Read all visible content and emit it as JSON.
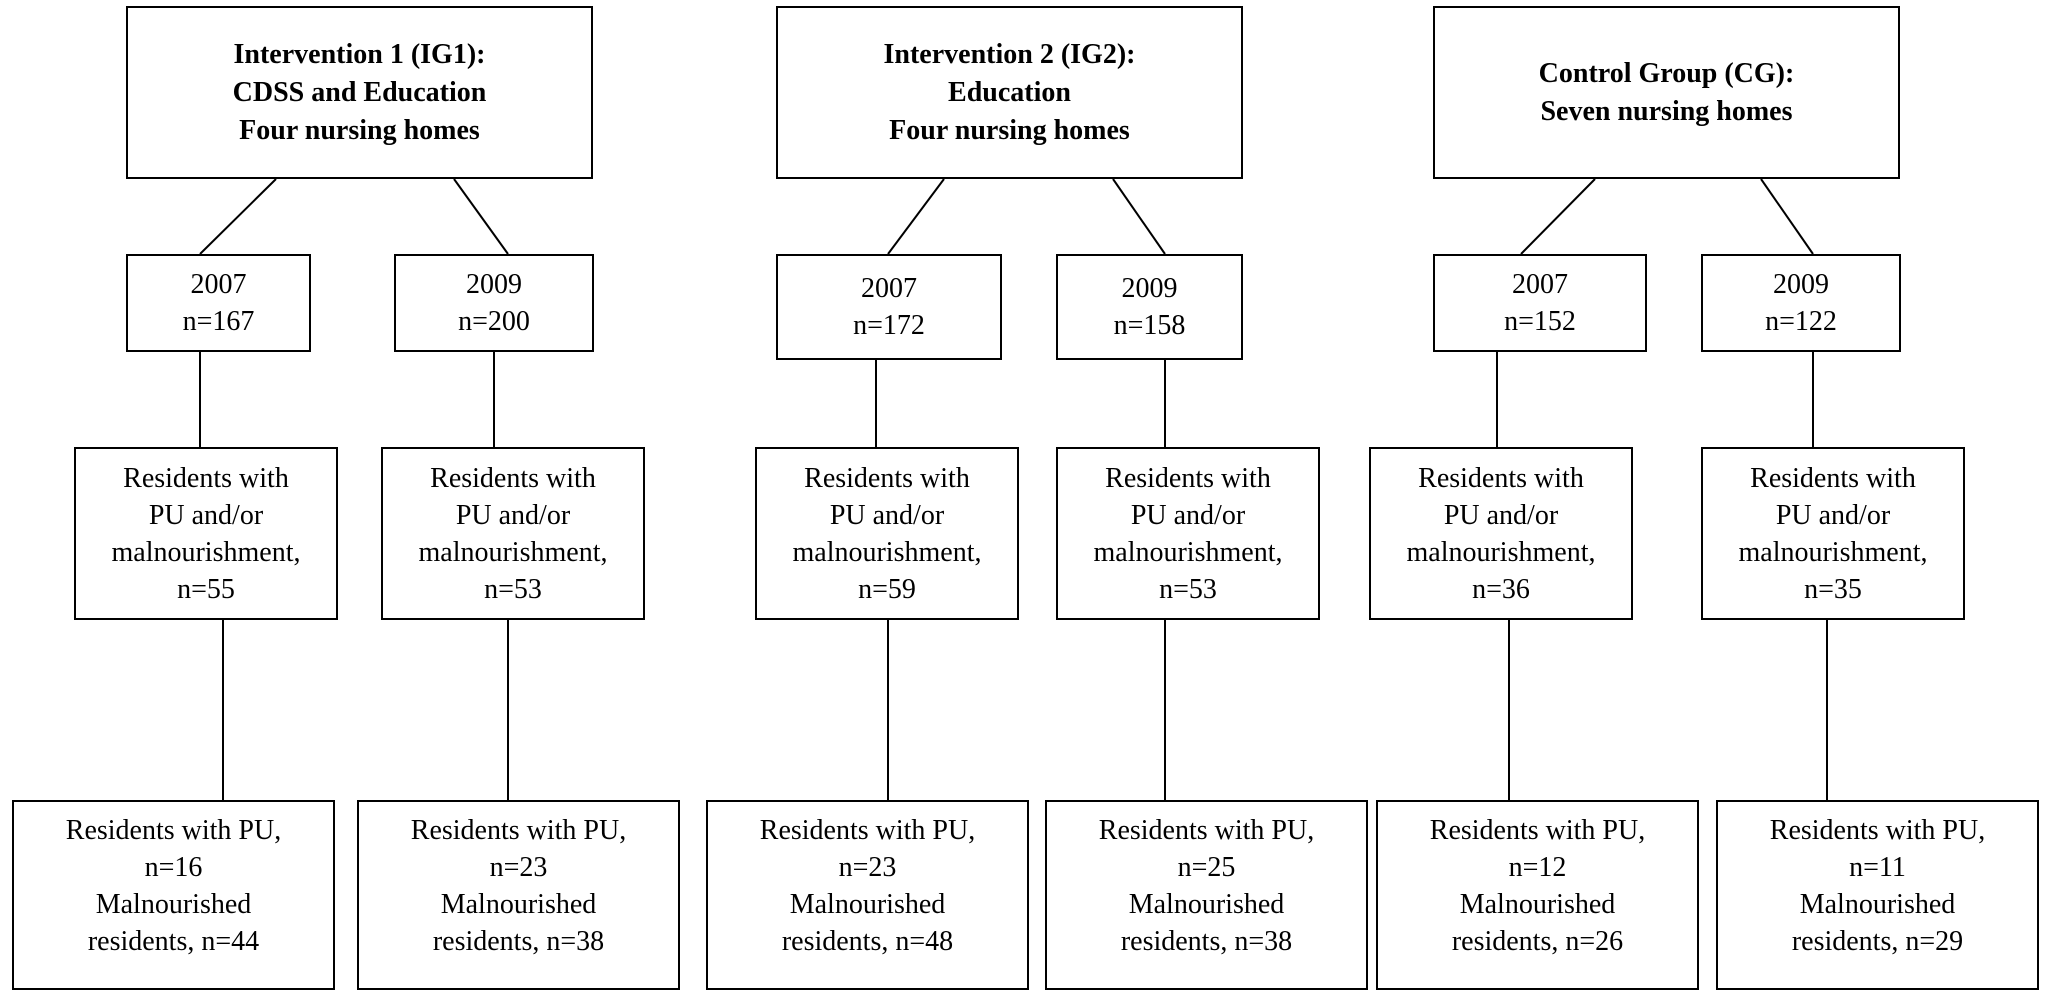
{
  "groups": [
    {
      "header": [
        "Intervention 1 (IG1):",
        "CDSS and Education",
        "Four nursing homes"
      ],
      "arms": [
        {
          "year": "2007",
          "n": "n=167",
          "sub": [
            "Residents with",
            "PU and/or",
            "malnourishment,",
            "n=55"
          ],
          "final": [
            "Residents with PU,",
            "n=16",
            "Malnourished",
            "residents, n=44"
          ]
        },
        {
          "year": "2009",
          "n": "n=200",
          "sub": [
            "Residents with",
            "PU and/or",
            "malnourishment,",
            "n=53"
          ],
          "final": [
            "Residents with PU,",
            "n=23",
            "Malnourished",
            "residents, n=38"
          ]
        }
      ]
    },
    {
      "header": [
        "Intervention 2 (IG2):",
        "Education",
        "Four nursing homes"
      ],
      "arms": [
        {
          "year": "2007",
          "n": "n=172",
          "sub": [
            "Residents with",
            "PU and/or",
            "malnourishment,",
            "n=59"
          ],
          "final": [
            "Residents with PU,",
            "n=23",
            "Malnourished",
            "residents, n=48"
          ]
        },
        {
          "year": "2009",
          "n": "n=158",
          "sub": [
            "Residents with",
            "PU and/or",
            "malnourishment,",
            "n=53"
          ],
          "final": [
            "Residents with PU,",
            "n=25",
            "Malnourished",
            "residents, n=38"
          ]
        }
      ]
    },
    {
      "header": [
        "Control Group (CG):",
        "Seven nursing homes"
      ],
      "arms": [
        {
          "year": "2007",
          "n": "n=152",
          "sub": [
            "Residents with",
            "PU and/or",
            "malnourishment,",
            "n=36"
          ],
          "final": [
            "Residents with PU,",
            "n=12",
            "Malnourished",
            "residents, n=26"
          ]
        },
        {
          "year": "2009",
          "n": "n=122",
          "sub": [
            "Residents with",
            "PU and/or",
            "malnourishment,",
            "n=35"
          ],
          "final": [
            "Residents with PU,",
            "n=11",
            "Malnourished",
            "residents, n=29"
          ]
        }
      ]
    }
  ]
}
